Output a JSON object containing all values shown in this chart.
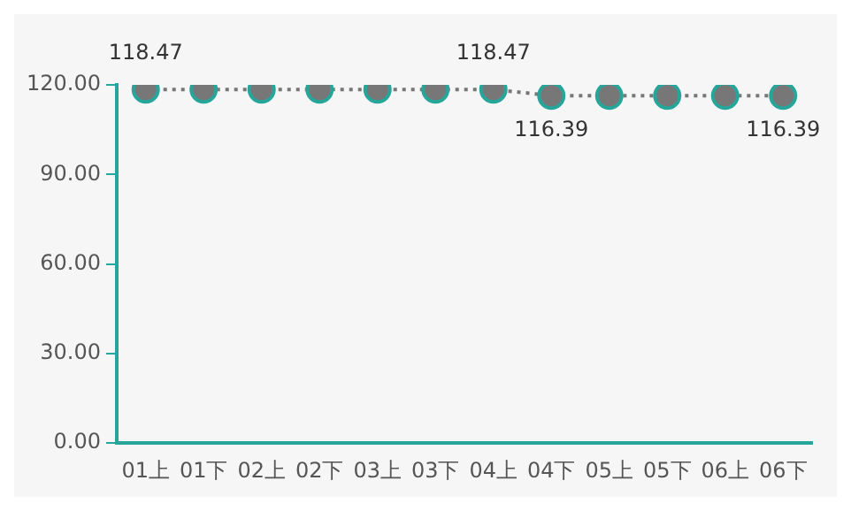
{
  "chart_data": {
    "type": "line",
    "categories": [
      "01上",
      "01下",
      "02上",
      "02下",
      "03上",
      "03下",
      "04上",
      "04下",
      "05上",
      "05下",
      "06上",
      "06下"
    ],
    "series": [
      {
        "color": "#777777",
        "values": [
          118.47,
          118.47,
          118.47,
          118.47,
          118.47,
          118.47,
          118.47,
          116.39,
          116.39,
          116.39,
          116.39,
          116.39
        ],
        "value_labels": [
          "118.47",
          null,
          null,
          null,
          null,
          null,
          "118.47",
          "116.39",
          null,
          null,
          null,
          "116.39"
        ]
      }
    ],
    "ylim": [
      0,
      120
    ],
    "yticks": [
      {
        "value": 0,
        "label": "0.00"
      },
      {
        "value": 30,
        "label": "30.00"
      },
      {
        "value": 60,
        "label": "60.00"
      },
      {
        "value": 90,
        "label": "90.00"
      },
      {
        "value": 120,
        "label": "120.00"
      }
    ],
    "grid": false,
    "legend": false,
    "marker": "circle",
    "line_style": "dotted"
  }
}
